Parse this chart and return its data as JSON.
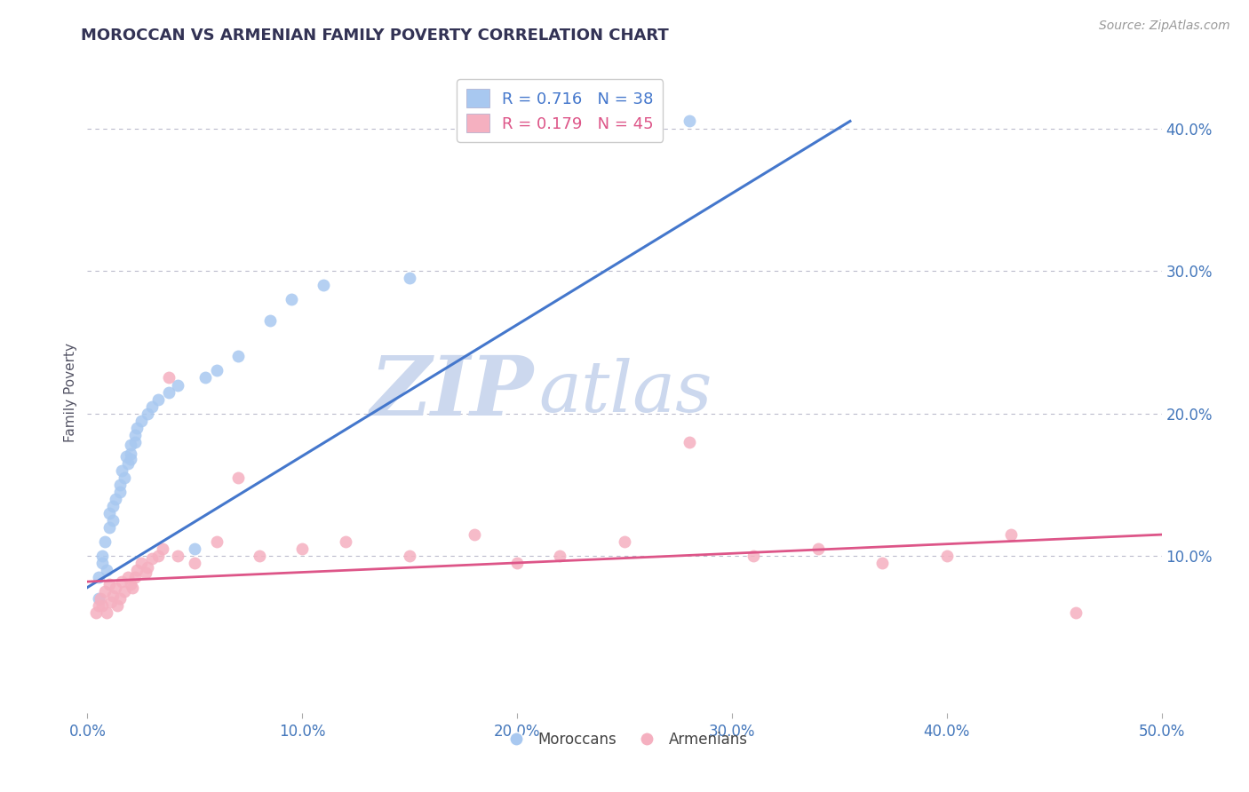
{
  "title": "MOROCCAN VS ARMENIAN FAMILY POVERTY CORRELATION CHART",
  "source": "Source: ZipAtlas.com",
  "ylabel": "Family Poverty",
  "xlim": [
    0.0,
    0.5
  ],
  "ylim": [
    -0.01,
    0.44
  ],
  "xticks": [
    0.0,
    0.1,
    0.2,
    0.3,
    0.4,
    0.5
  ],
  "xtick_labels": [
    "0.0%",
    "10.0%",
    "20.0%",
    "30.0%",
    "40.0%",
    "50.0%"
  ],
  "ytick_labels_right": [
    "10.0%",
    "20.0%",
    "30.0%",
    "40.0%"
  ],
  "yticks_right": [
    0.1,
    0.2,
    0.3,
    0.4
  ],
  "grid_yticks": [
    0.1,
    0.2,
    0.3,
    0.4
  ],
  "moroccan_color": "#a8c8f0",
  "armenian_color": "#f5b0c0",
  "moroccan_line_color": "#4477cc",
  "armenian_line_color": "#dd5588",
  "R_moroccan": 0.716,
  "N_moroccan": 38,
  "R_armenian": 0.179,
  "N_armenian": 45,
  "background_color": "#ffffff",
  "moroccan_x": [
    0.005,
    0.005,
    0.007,
    0.007,
    0.008,
    0.009,
    0.01,
    0.01,
    0.012,
    0.012,
    0.013,
    0.015,
    0.015,
    0.016,
    0.017,
    0.018,
    0.019,
    0.02,
    0.02,
    0.02,
    0.022,
    0.022,
    0.023,
    0.025,
    0.028,
    0.03,
    0.033,
    0.038,
    0.042,
    0.05,
    0.055,
    0.06,
    0.07,
    0.085,
    0.095,
    0.11,
    0.15,
    0.28
  ],
  "moroccan_y": [
    0.085,
    0.07,
    0.1,
    0.095,
    0.11,
    0.09,
    0.13,
    0.12,
    0.135,
    0.125,
    0.14,
    0.15,
    0.145,
    0.16,
    0.155,
    0.17,
    0.165,
    0.178,
    0.172,
    0.168,
    0.185,
    0.18,
    0.19,
    0.195,
    0.2,
    0.205,
    0.21,
    0.215,
    0.22,
    0.105,
    0.225,
    0.23,
    0.24,
    0.265,
    0.28,
    0.29,
    0.295,
    0.405
  ],
  "armenian_x": [
    0.004,
    0.005,
    0.006,
    0.007,
    0.008,
    0.009,
    0.01,
    0.011,
    0.012,
    0.013,
    0.014,
    0.015,
    0.016,
    0.017,
    0.019,
    0.02,
    0.021,
    0.022,
    0.023,
    0.025,
    0.027,
    0.028,
    0.03,
    0.033,
    0.035,
    0.038,
    0.042,
    0.05,
    0.06,
    0.07,
    0.08,
    0.1,
    0.12,
    0.15,
    0.18,
    0.2,
    0.22,
    0.25,
    0.28,
    0.31,
    0.34,
    0.37,
    0.4,
    0.43,
    0.46
  ],
  "armenian_y": [
    0.06,
    0.065,
    0.07,
    0.065,
    0.075,
    0.06,
    0.08,
    0.068,
    0.072,
    0.078,
    0.065,
    0.07,
    0.082,
    0.075,
    0.085,
    0.08,
    0.078,
    0.085,
    0.09,
    0.095,
    0.088,
    0.092,
    0.098,
    0.1,
    0.105,
    0.225,
    0.1,
    0.095,
    0.11,
    0.155,
    0.1,
    0.105,
    0.11,
    0.1,
    0.115,
    0.095,
    0.1,
    0.11,
    0.18,
    0.1,
    0.105,
    0.095,
    0.1,
    0.115,
    0.06
  ]
}
